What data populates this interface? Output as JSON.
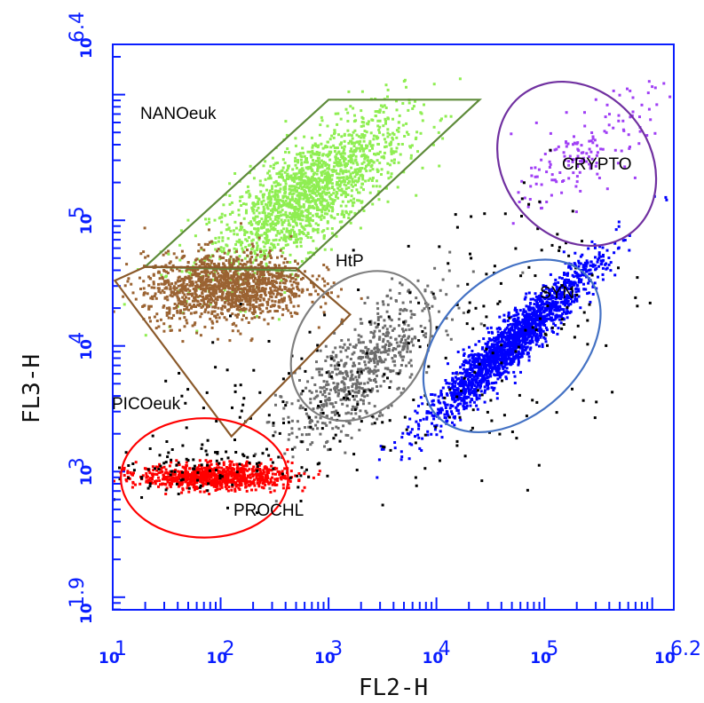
{
  "chart_data": {
    "type": "scatter",
    "subtype": "flow-cytometry-dot-plot",
    "xlabel": "FL2-H",
    "ylabel": "FL3-H",
    "x_scale": "log10",
    "y_scale": "log10",
    "xlim": [
      1,
      6.2
    ],
    "ylim": [
      1.9,
      6.4
    ],
    "x_ticks": [
      {
        "value": 1,
        "base": "10",
        "exp": "1"
      },
      {
        "value": 2,
        "base": "10",
        "exp": "2"
      },
      {
        "value": 3,
        "base": "10",
        "exp": "3"
      },
      {
        "value": 4,
        "base": "10",
        "exp": "4"
      },
      {
        "value": 5,
        "base": "10",
        "exp": "5"
      },
      {
        "value": 6.2,
        "base": "10",
        "exp": "6.2"
      }
    ],
    "y_ticks": [
      {
        "value": 1.9,
        "base": "10",
        "exp": "1.9"
      },
      {
        "value": 3,
        "base": "10",
        "exp": "3"
      },
      {
        "value": 4,
        "base": "10",
        "exp": "4"
      },
      {
        "value": 5,
        "base": "10",
        "exp": "5"
      },
      {
        "value": 6.4,
        "base": "10",
        "exp": "6.4"
      }
    ],
    "grid": false,
    "tick_color": "#0a1eff",
    "populations": [
      {
        "name": "NANOeuk",
        "color": "#5e8b3a",
        "dot_color": "#8fee52",
        "gate": {
          "shape": "polygon",
          "points": [
            [
              1.3,
              4.63
            ],
            [
              3.0,
              5.96
            ],
            [
              4.4,
              5.96
            ],
            [
              2.7,
              4.6
            ]
          ]
        },
        "cluster": {
          "cx": 2.8,
          "cy": 5.2,
          "sx": 0.45,
          "sy": 0.32,
          "rho": 0.75,
          "n": 1700
        }
      },
      {
        "name": "PICOeuk",
        "color": "#8b5a2b",
        "dot_color": "#9b6332",
        "gate": {
          "shape": "polygon",
          "points": [
            [
              1.02,
              4.52
            ],
            [
              1.3,
              4.63
            ],
            [
              2.7,
              4.62
            ],
            [
              3.2,
              4.25
            ],
            [
              2.1,
              3.28
            ]
          ]
        },
        "cluster": {
          "cx": 2.05,
          "cy": 4.47,
          "sx": 0.38,
          "sy": 0.14,
          "rho": 0.1,
          "n": 1300
        }
      },
      {
        "name": "HtP",
        "color": "#808080",
        "dot_color": "#6d6d6d",
        "gate": {
          "shape": "ellipse",
          "cx": 3.3,
          "cy": 4.0,
          "rx": 1.5,
          "ry": 0.2,
          "angle_deg": 53
        },
        "cluster": {
          "cx": 3.3,
          "cy": 3.8,
          "sx": 0.35,
          "sy": 0.3,
          "rho": 0.75,
          "n": 650
        }
      },
      {
        "name": "SYN",
        "color": "#4472c4",
        "dot_color": "#0000ff",
        "gate": {
          "shape": "ellipse",
          "cx": 4.7,
          "cy": 4.0,
          "rx": 1.9,
          "ry": 0.22,
          "angle_deg": 43
        },
        "cluster": {
          "cx": 4.7,
          "cy": 4.03,
          "sx": 0.4,
          "sy": 0.33,
          "rho": 0.95,
          "n": 1900
        }
      },
      {
        "name": "CRYPTO",
        "color": "#7030a0",
        "dot_color": "#a03ff5",
        "gate": {
          "shape": "ellipse",
          "cx": 5.3,
          "cy": 5.45,
          "rx": 1.35,
          "ry": 0.28,
          "angle_deg": 40
        },
        "cluster": {
          "cx": 5.4,
          "cy": 5.55,
          "sx": 0.3,
          "sy": 0.22,
          "rho": 0.7,
          "n": 160
        }
      },
      {
        "name": "PROCHL",
        "color": "#ff0000",
        "dot_color": "#ff0000",
        "gate": {
          "shape": "ellipse",
          "cx": 1.85,
          "cy": 2.95,
          "rx": 1.55,
          "ry": 0.19,
          "angle_deg": 0
        },
        "cluster": {
          "cx": 1.95,
          "cy": 2.96,
          "sx": 0.35,
          "sy": 0.05,
          "rho": 0.0,
          "n": 900
        }
      }
    ],
    "background_dots": {
      "color": "#000000"
    }
  }
}
